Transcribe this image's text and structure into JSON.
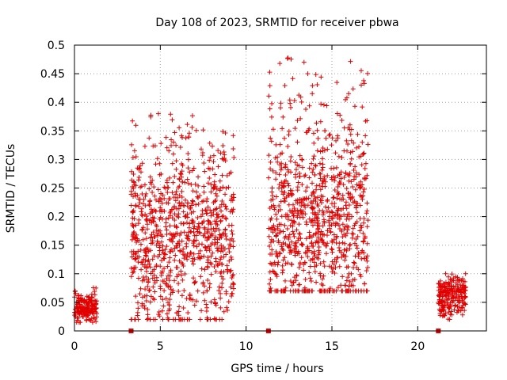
{
  "chart_data": {
    "type": "scatter",
    "title": "Day 108 of 2023, SRMTID for receiver pbwa",
    "xlabel": "GPS time / hours",
    "ylabel": "SRMTID / TECUs",
    "xlim": [
      0,
      24
    ],
    "ylim": [
      0,
      0.5
    ],
    "grid": true,
    "xticks": [
      0,
      5,
      10,
      15,
      20
    ],
    "yticks": [
      0,
      0.05,
      0.1,
      0.15,
      0.2,
      0.25,
      0.3,
      0.35,
      0.4,
      0.45,
      0.5
    ],
    "marker": "+",
    "color": "#e00000",
    "zero_markers_x": [
      3.3,
      11.3,
      21.2
    ],
    "clusters": [
      {
        "x_start": 0.0,
        "x_end": 1.3,
        "y_min": 0.015,
        "y_max": 0.08,
        "y_typical": 0.04,
        "n": 180
      },
      {
        "x_start": 3.3,
        "x_end": 9.3,
        "y_min": 0.02,
        "y_max": 0.38,
        "y_typical": 0.16,
        "n": 900
      },
      {
        "x_start": 11.3,
        "x_end": 17.1,
        "y_min": 0.07,
        "y_max": 0.48,
        "y_typical": 0.2,
        "n": 900
      },
      {
        "x_start": 21.2,
        "x_end": 22.8,
        "y_min": 0.02,
        "y_max": 0.1,
        "y_typical": 0.06,
        "n": 220
      }
    ]
  }
}
